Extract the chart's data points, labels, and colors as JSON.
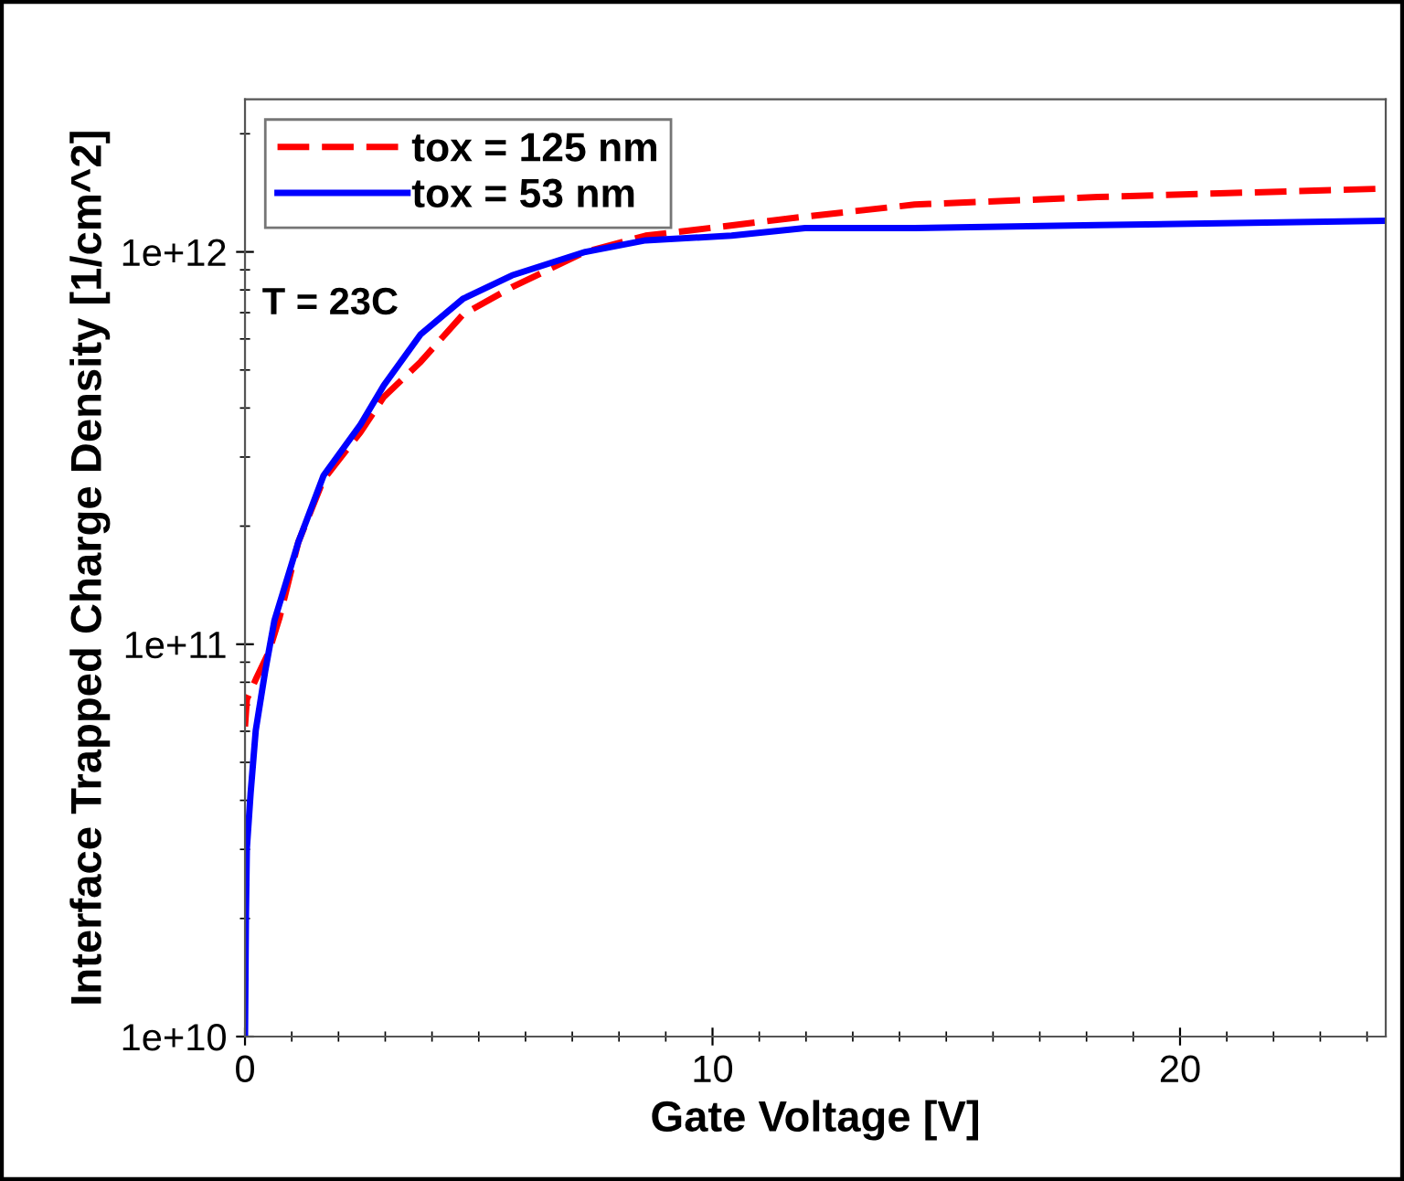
{
  "chart_data": {
    "type": "line",
    "xlabel": "Gate Voltage [V]",
    "ylabel": "Interface Trapped Charge Density [1/cm^2]",
    "annotations": [
      "T = 23C"
    ],
    "log": "y",
    "xlim": [
      0,
      24.4
    ],
    "ylim": [
      10000000000.0,
      2450000000000.0
    ],
    "xticks": [
      0,
      10,
      20
    ],
    "yticks": [
      {
        "value": 10000000000.0,
        "label": "1e+10"
      },
      {
        "value": 100000000000.0,
        "label": "1e+11"
      },
      {
        "value": 1000000000000.0,
        "label": "1e+12"
      }
    ],
    "grid": false,
    "legend": "top left",
    "series": [
      {
        "name": "tox = 125 nm",
        "color": "#ff0000",
        "line_style": "dashed",
        "x": [
          0,
          0.04,
          0.23,
          0.51,
          0.74,
          1.14,
          1.68,
          2.47,
          2.97,
          3.76,
          4.66,
          5.71,
          7.28,
          8.57,
          11.98,
          14.32,
          18.24,
          20.85,
          24.4
        ],
        "values": [
          61700000000.0,
          72400000000.0,
          81300000000.0,
          95500000000.0,
          117000000000.0,
          182000000000.0,
          263000000000.0,
          347000000000.0,
          427000000000.0,
          525000000000.0,
          692000000000.0,
          813000000000.0,
          1000000000000.0,
          1100000000000.0,
          1230000000000.0,
          1320000000000.0,
          1380000000000.0,
          1410000000000.0,
          1450000000000.0
        ]
      },
      {
        "name": "tox = 53 nm",
        "color": "#0000ff",
        "line_style": "solid",
        "x": [
          0,
          0.02,
          0.04,
          0.12,
          0.23,
          0.43,
          0.63,
          1.14,
          1.68,
          2.47,
          2.97,
          3.76,
          4.66,
          5.71,
          7.28,
          8.57,
          10.41,
          11.98,
          14.32,
          18.24,
          24.4
        ],
        "values": [
          10000000000.0,
          20400000000.0,
          30200000000.0,
          41700000000.0,
          60300000000.0,
          85100000000.0,
          115000000000.0,
          182000000000.0,
          269000000000.0,
          363000000000.0,
          457000000000.0,
          617000000000.0,
          759000000000.0,
          871000000000.0,
          1000000000000.0,
          1070000000000.0,
          1100000000000.0,
          1150000000000.0,
          1150000000000.0,
          1170000000000.0,
          1200000000000.0
        ]
      }
    ]
  }
}
